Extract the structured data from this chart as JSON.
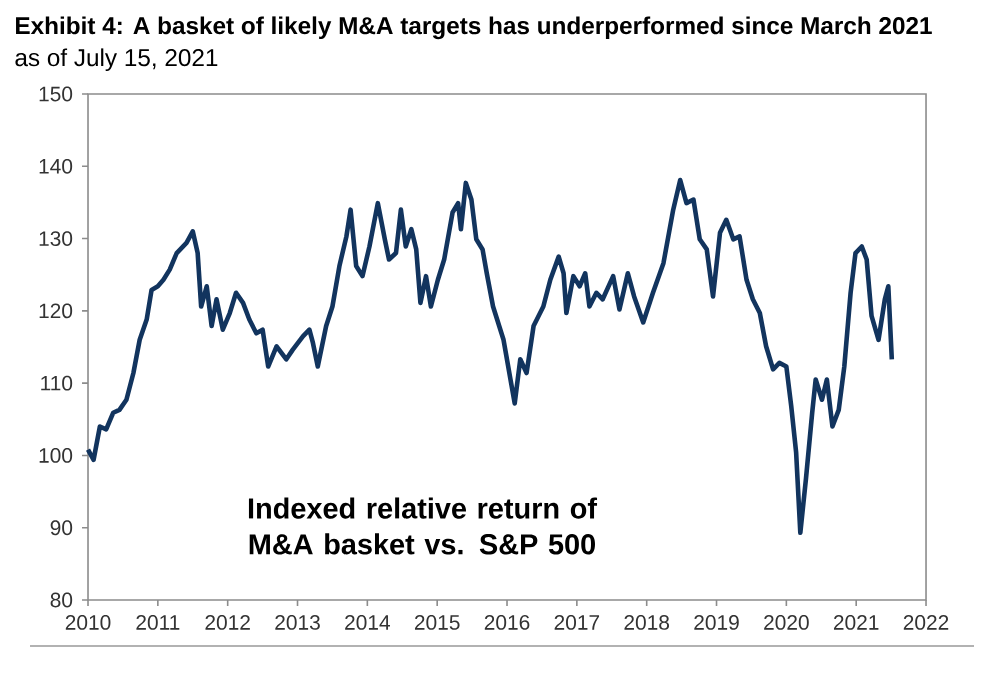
{
  "chart_data": {
    "type": "line",
    "title": "Exhibit 4: A basket of likely M&A targets has underperformed since March 2021",
    "subtitle": "as of July 15, 2021",
    "annotations": [
      "Indexed relative return of M&A basket vs. S&P 500"
    ],
    "x": [
      2010.0,
      2010.08,
      2010.17,
      2010.26,
      2010.36,
      2010.45,
      2010.55,
      2010.65,
      2010.74,
      2010.84,
      2010.91,
      2011.0,
      2011.08,
      2011.17,
      2011.27,
      2011.41,
      2011.5,
      2011.57,
      2011.62,
      2011.7,
      2011.77,
      2011.84,
      2011.93,
      2012.03,
      2012.12,
      2012.22,
      2012.31,
      2012.41,
      2012.5,
      2012.58,
      2012.7,
      2012.84,
      2012.93,
      2013.08,
      2013.17,
      2013.22,
      2013.29,
      2013.41,
      2013.5,
      2013.6,
      2013.7,
      2013.76,
      2013.84,
      2013.93,
      2014.03,
      2014.15,
      2014.25,
      2014.31,
      2014.41,
      2014.48,
      2014.55,
      2014.63,
      2014.7,
      2014.76,
      2014.84,
      2014.91,
      2015.01,
      2015.1,
      2015.22,
      2015.3,
      2015.34,
      2015.41,
      2015.49,
      2015.56,
      2015.65,
      2015.71,
      2015.8,
      2015.95,
      2016.05,
      2016.11,
      2016.19,
      2016.28,
      2016.38,
      2016.52,
      2016.62,
      2016.74,
      2016.81,
      2016.85,
      2016.95,
      2017.04,
      2017.12,
      2017.18,
      2017.28,
      2017.37,
      2017.52,
      2017.61,
      2017.73,
      2017.82,
      2017.95,
      2018.09,
      2018.24,
      2018.38,
      2018.48,
      2018.57,
      2018.67,
      2018.76,
      2018.86,
      2018.95,
      2019.05,
      2019.14,
      2019.24,
      2019.33,
      2019.43,
      2019.52,
      2019.62,
      2019.71,
      2019.81,
      2019.9,
      2020.0,
      2020.07,
      2020.14,
      2020.2,
      2020.28,
      2020.37,
      2020.42,
      2020.51,
      2020.58,
      2020.66,
      2020.75,
      2020.83,
      2020.92,
      2020.99,
      2021.08,
      2021.15,
      2021.22,
      2021.32,
      2021.41,
      2021.46,
      2021.51
    ],
    "series": [
      {
        "color": "#12345e",
        "values": [
          100.8,
          99.4,
          104,
          103.6,
          105.9,
          106.3,
          107.7,
          111.4,
          116,
          118.8,
          122.9,
          123.4,
          124.3,
          125.7,
          128,
          129.4,
          131,
          128,
          120.6,
          123.4,
          117.9,
          121.6,
          117.4,
          119.7,
          122.5,
          121.1,
          118.8,
          116.9,
          117.4,
          112.3,
          115.1,
          113.3,
          114.6,
          116.5,
          117.4,
          115.6,
          112.3,
          117.9,
          120.6,
          126.2,
          130.3,
          134,
          126.2,
          124.8,
          128.9,
          134.9,
          129.9,
          127.1,
          128,
          134,
          128.9,
          131.3,
          128.5,
          121.1,
          124.8,
          120.6,
          124.3,
          127.1,
          133.6,
          134.9,
          131.3,
          137.7,
          135.4,
          129.9,
          128.5,
          125.2,
          120.6,
          116,
          110.5,
          107.2,
          113.3,
          111.4,
          117.9,
          120.6,
          124.3,
          127.5,
          125.2,
          119.7,
          124.8,
          123.4,
          125.2,
          120.6,
          122.5,
          121.6,
          124.8,
          120.2,
          125.2,
          122,
          118.4,
          122.5,
          126.6,
          134,
          138.1,
          134.9,
          135.4,
          129.9,
          128.5,
          122,
          130.8,
          132.6,
          129.9,
          130.3,
          124.3,
          121.6,
          119.7,
          115.1,
          111.9,
          112.8,
          112.3,
          106.8,
          100.4,
          89.3,
          96.7,
          105.9,
          110.5,
          107.7,
          110.5,
          104,
          106.3,
          112.3,
          122.5,
          128,
          128.9,
          127.1,
          119.3,
          116,
          121.6,
          123.4,
          113.3
        ]
      }
    ],
    "xlim": [
      2010,
      2022
    ],
    "xticks": [
      2010,
      2011,
      2012,
      2013,
      2014,
      2015,
      2016,
      2017,
      2018,
      2019,
      2020,
      2021,
      2022
    ],
    "ylim": [
      80,
      150
    ],
    "yticks": [
      80,
      90,
      100,
      110,
      120,
      130,
      140,
      150
    ],
    "grid": false,
    "legend": false,
    "marker": "none",
    "line_style": "solid"
  }
}
